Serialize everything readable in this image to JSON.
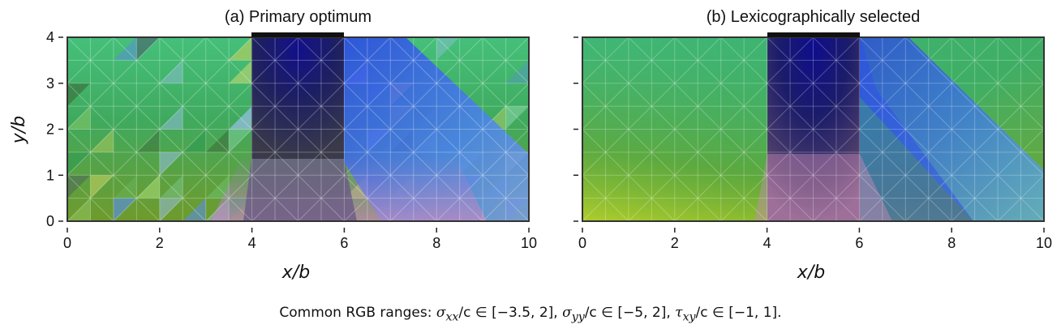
{
  "chart_data": [
    {
      "type": "heatmap",
      "title": "(a) Primary optimum",
      "xlabel": "x/b",
      "ylabel": "y/b",
      "xlim": [
        0,
        10
      ],
      "ylim": [
        0,
        4
      ],
      "x_ticks": [
        0,
        2,
        4,
        6,
        8,
        10
      ],
      "y_ticks": [
        0,
        1,
        2,
        3,
        4
      ],
      "load_patch": {
        "x": [
          4,
          6
        ],
        "y": 4
      },
      "mesh_divisions": {
        "x": 20,
        "y": 8
      },
      "colors": {
        "base": "#3fb66e",
        "load_zone": "#1a157a",
        "right_blue": "#3a6ef0"
      }
    },
    {
      "type": "heatmap",
      "title": "(b) Lexicographically selected",
      "xlabel": "x/b",
      "ylabel": "",
      "xlim": [
        0,
        10
      ],
      "ylim": [
        0,
        4
      ],
      "x_ticks": [
        0,
        2,
        4,
        6,
        8,
        10
      ],
      "y_ticks": [
        0,
        1,
        2,
        3,
        4
      ],
      "load_patch": {
        "x": [
          4,
          6
        ],
        "y": 4
      },
      "mesh_divisions": {
        "x": 20,
        "y": 8
      },
      "colors": {
        "base": "#3fb66e",
        "load_zone": "#1a157a",
        "right_blue": "#3a6ef0"
      }
    }
  ],
  "caption": {
    "prefix": "Common RGB ranges: ",
    "sxx_sym": "σ",
    "sxx_sub": "xx",
    "sxx_range": "/c ∈ [−3.5, 2], ",
    "syy_sym": "σ",
    "syy_sub": "yy",
    "syy_range": "/c ∈ [−5, 2], ",
    "txy_sym": "τ",
    "txy_sub": "xy",
    "txy_range": "/c ∈ [−1, 1]."
  }
}
